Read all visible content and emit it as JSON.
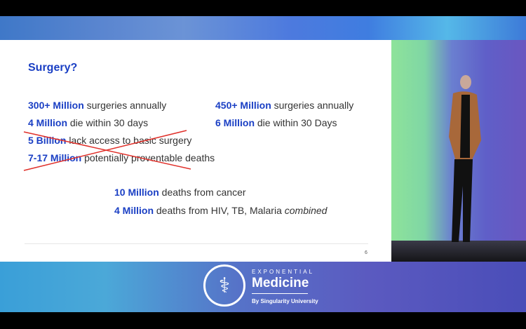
{
  "slide": {
    "title": "Surgery?",
    "left_items": [
      {
        "bold": "300+ Million",
        "text": " surgeries annually",
        "struck": false
      },
      {
        "bold": "4 Million",
        "text": " die within 30 days",
        "struck": false
      },
      {
        "bold": "5 Billion",
        "text": " lack access to basic surgery",
        "struck": true
      },
      {
        "bold": "7-17 Million",
        "text": " potentially proventable deaths",
        "struck": true
      }
    ],
    "right_items": [
      {
        "bold": "450+ Million",
        "text": " surgeries annually"
      },
      {
        "bold": "6 Million",
        "text": " die within 30 Days"
      }
    ],
    "bottom_items": [
      {
        "bold": "10 Million",
        "text": " deaths from cancer",
        "italic": ""
      },
      {
        "bold": "4 Million",
        "text": " deaths from HIV, TB, Malaria ",
        "italic": "combined"
      }
    ],
    "page_number": "6",
    "accent_color": "#1a3fc4",
    "strike_color": "#e0302a"
  },
  "branding": {
    "line1": "EXPONENTIAL",
    "line2": "Medicine",
    "line3": "By Singularity University",
    "logo_icon": "caduceus-icon"
  }
}
